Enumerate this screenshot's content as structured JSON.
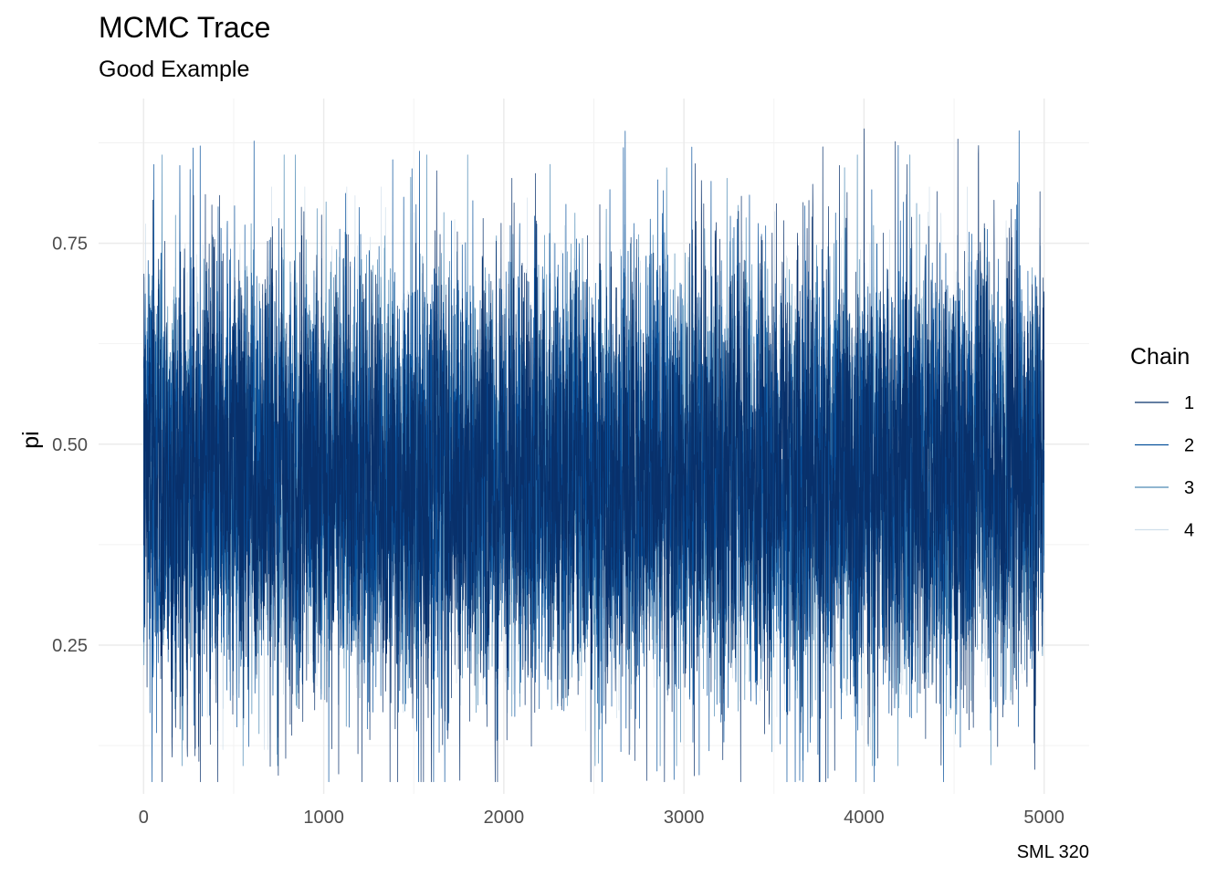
{
  "chart_data": {
    "type": "line",
    "title": "MCMC Trace",
    "subtitle": "Good Example",
    "caption": "SML 320",
    "xlabel": "",
    "ylabel": "pi",
    "xlim": [
      -250,
      5250
    ],
    "ylim": [
      0.065,
      0.93
    ],
    "x_ticks": [
      0,
      1000,
      2000,
      3000,
      4000,
      5000
    ],
    "x_tick_labels": [
      "0",
      "1000",
      "2000",
      "3000",
      "4000",
      "5000"
    ],
    "y_ticks": [
      0.25,
      0.5,
      0.75
    ],
    "y_tick_labels": [
      "0.25",
      "0.50",
      "0.75"
    ],
    "grid": true,
    "legend": {
      "title": "Chain",
      "position": "right"
    },
    "iterations": 5000,
    "series": [
      {
        "name": "1",
        "color": "#08306b",
        "center": 0.46,
        "spread": 0.13,
        "min": 0.08,
        "max": 0.9
      },
      {
        "name": "2",
        "color": "#08519c",
        "center": 0.46,
        "spread": 0.13,
        "min": 0.08,
        "max": 0.89
      },
      {
        "name": "3",
        "color": "#4d8ab5",
        "center": 0.46,
        "spread": 0.12,
        "min": 0.1,
        "max": 0.86
      },
      {
        "name": "4",
        "color": "#d0dfeb",
        "center": 0.46,
        "spread": 0.11,
        "min": 0.12,
        "max": 0.82
      }
    ]
  }
}
